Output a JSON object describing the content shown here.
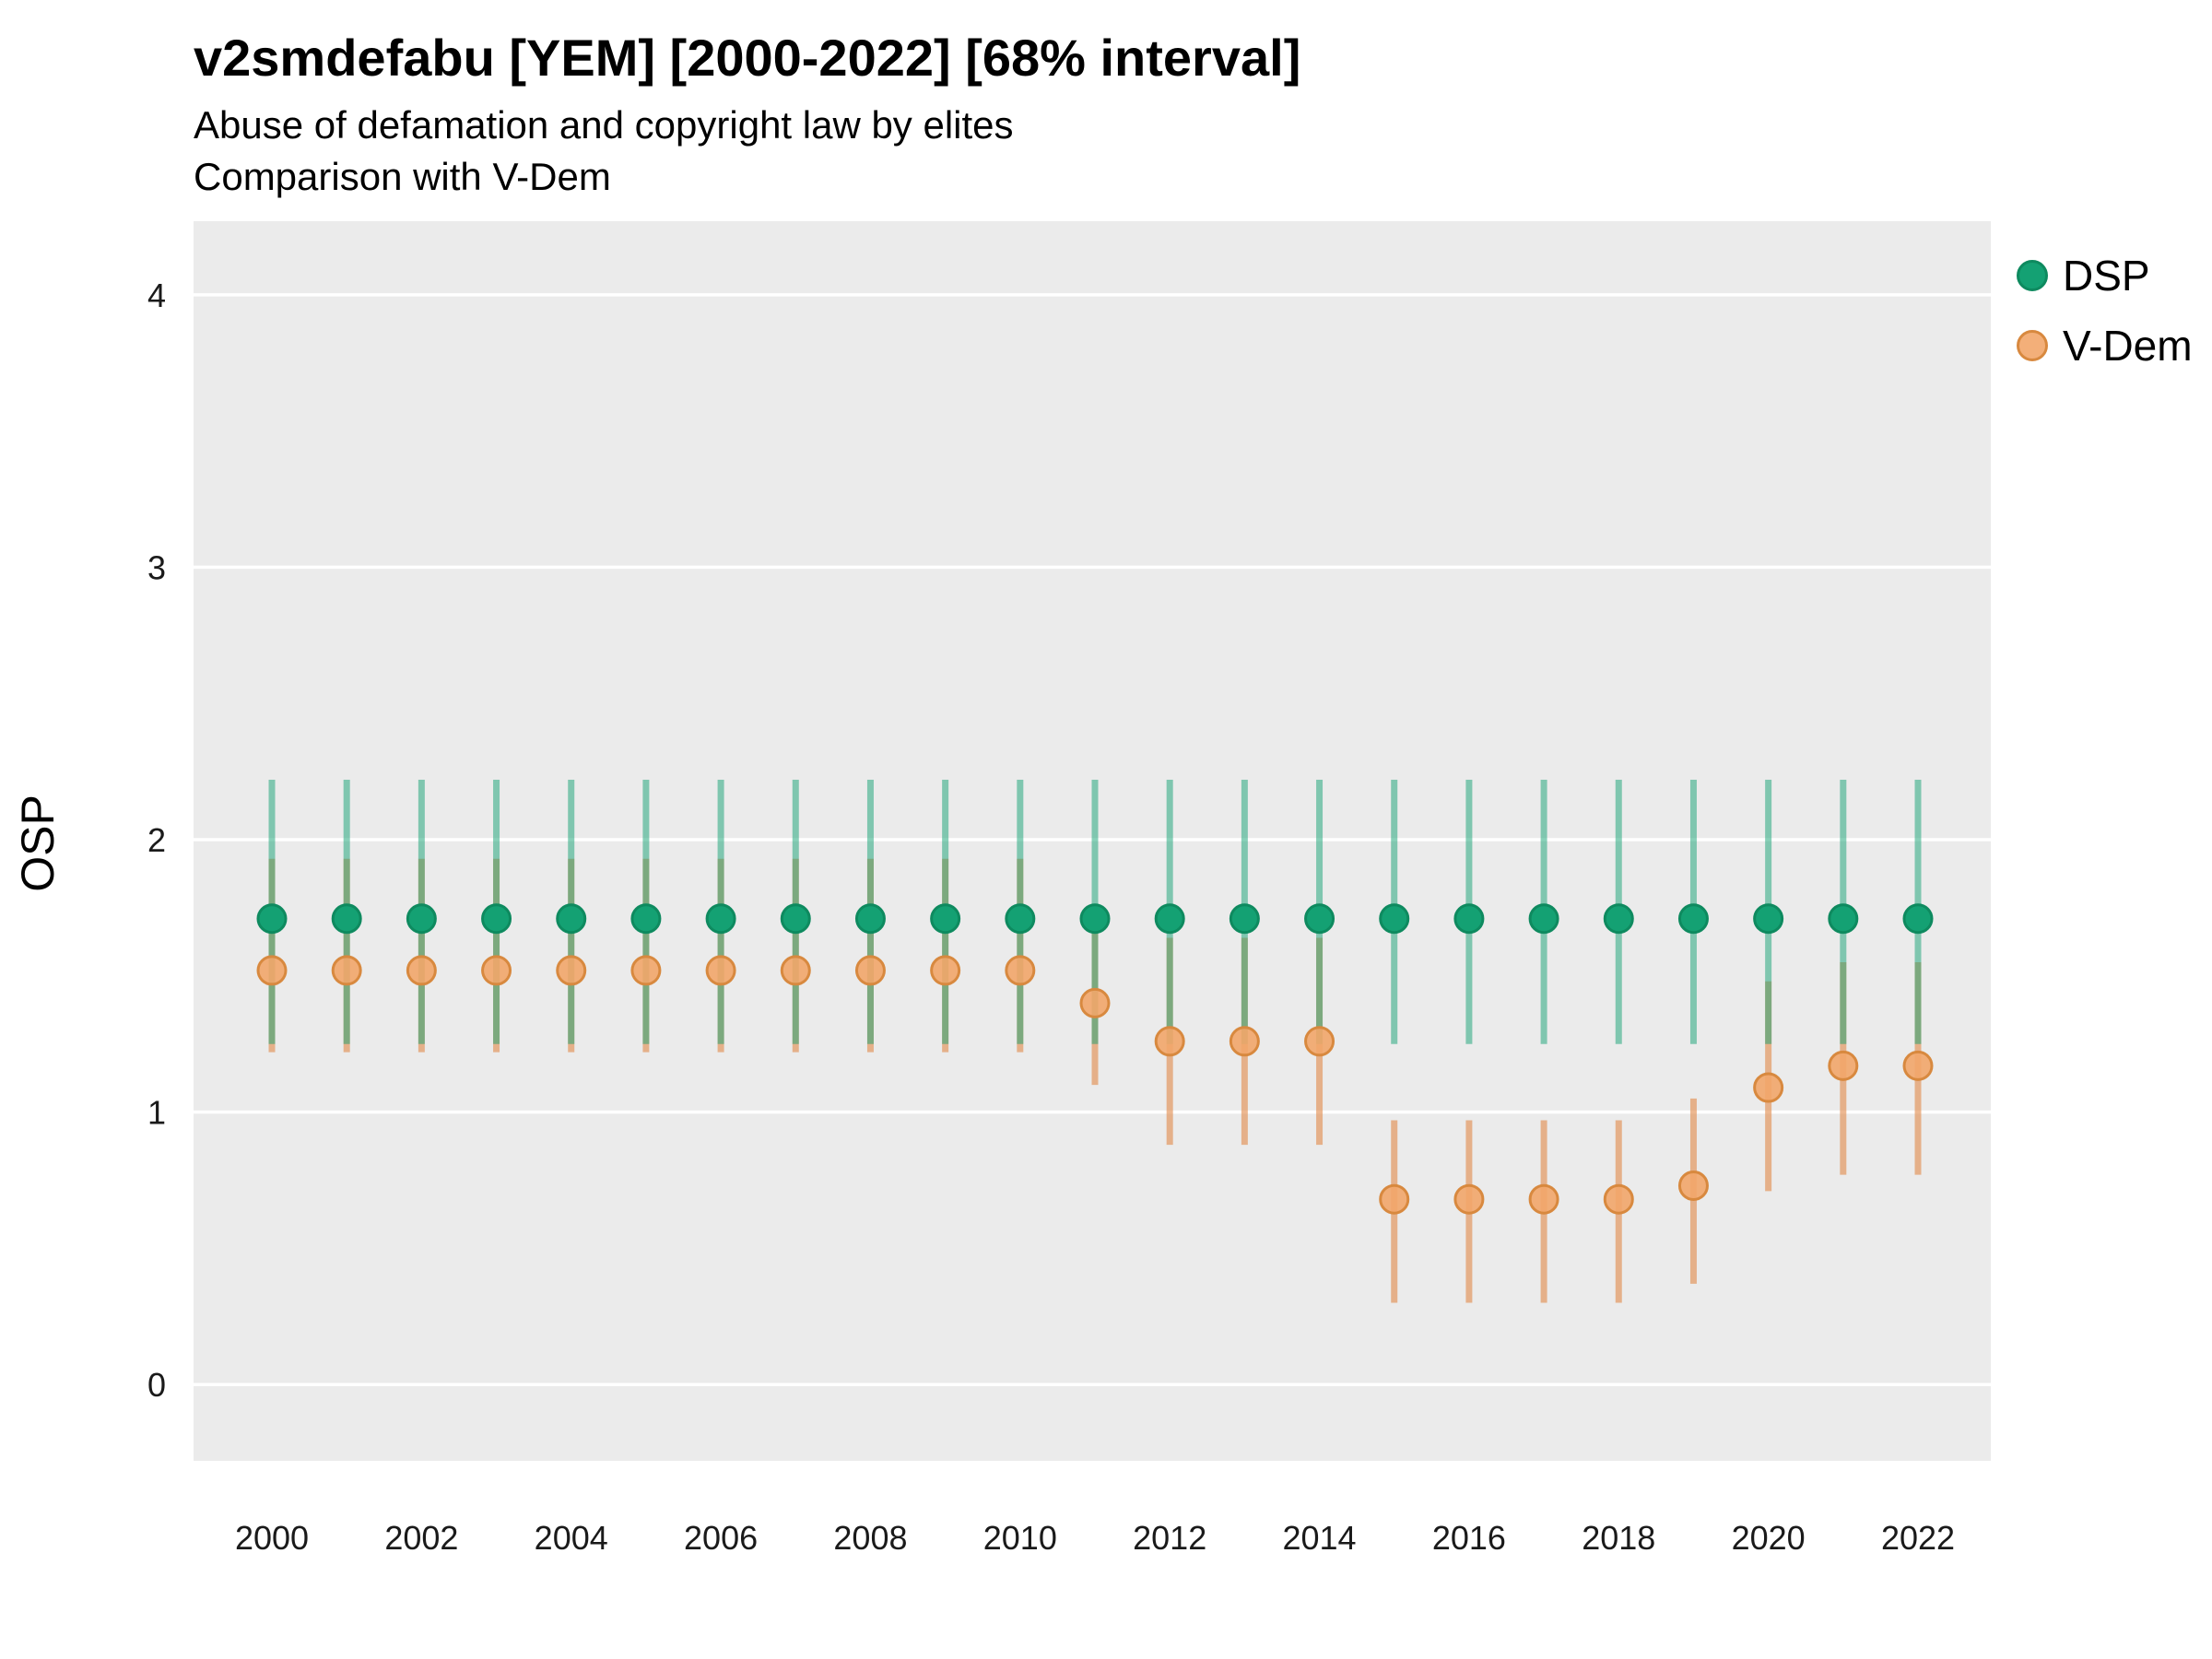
{
  "chart_data": {
    "type": "scatter",
    "title": "v2smdefabu [YEM] [2000-2022] [68% interval]",
    "subtitle": "Abuse of defamation and copyright law by elites",
    "subtitle2": "Comparison with V-Dem",
    "ylabel": "OSP",
    "interval": "68%",
    "panel_background": "#EBEBEB",
    "gridline_color": "#FFFFFF",
    "x": [
      2000,
      2001,
      2002,
      2003,
      2004,
      2005,
      2006,
      2007,
      2008,
      2009,
      2010,
      2011,
      2012,
      2013,
      2014,
      2015,
      2016,
      2017,
      2018,
      2019,
      2020,
      2021,
      2022
    ],
    "xticks": [
      2000,
      2002,
      2004,
      2006,
      2008,
      2010,
      2012,
      2014,
      2016,
      2018,
      2020,
      2022
    ],
    "yticks": [
      0,
      1,
      2,
      3,
      4
    ],
    "ylim": [
      -0.28,
      4.27
    ],
    "legend_position": "right",
    "series": [
      {
        "name": "DSP",
        "point_fill": "#14a173",
        "point_stroke": "#0e8a5f",
        "interval_color": "rgba(20,161,115,0.5)",
        "est": [
          1.71,
          1.71,
          1.71,
          1.71,
          1.71,
          1.71,
          1.71,
          1.71,
          1.71,
          1.71,
          1.71,
          1.71,
          1.71,
          1.71,
          1.71,
          1.71,
          1.71,
          1.71,
          1.71,
          1.71,
          1.71,
          1.71,
          1.71
        ],
        "lo": [
          1.25,
          1.25,
          1.25,
          1.25,
          1.25,
          1.25,
          1.25,
          1.25,
          1.25,
          1.25,
          1.25,
          1.25,
          1.25,
          1.25,
          1.25,
          1.25,
          1.25,
          1.25,
          1.25,
          1.25,
          1.25,
          1.25,
          1.25
        ],
        "hi": [
          2.22,
          2.22,
          2.22,
          2.22,
          2.22,
          2.22,
          2.22,
          2.22,
          2.22,
          2.22,
          2.22,
          2.22,
          2.22,
          2.22,
          2.22,
          2.22,
          2.22,
          2.22,
          2.22,
          2.22,
          2.22,
          2.22,
          2.22
        ]
      },
      {
        "name": "V-Dem",
        "point_fill": "rgba(242,166,106,0.9)",
        "point_stroke": "#d8893f",
        "interval_color": "rgba(226,141,77,0.62)",
        "est": [
          1.52,
          1.52,
          1.52,
          1.52,
          1.52,
          1.52,
          1.52,
          1.52,
          1.52,
          1.52,
          1.52,
          1.4,
          1.26,
          1.26,
          1.26,
          0.68,
          0.68,
          0.68,
          0.68,
          0.73,
          1.09,
          1.17,
          1.17
        ],
        "lo": [
          1.22,
          1.22,
          1.22,
          1.22,
          1.22,
          1.22,
          1.22,
          1.22,
          1.22,
          1.22,
          1.22,
          1.1,
          0.88,
          0.88,
          0.88,
          0.3,
          0.3,
          0.3,
          0.3,
          0.37,
          0.71,
          0.77,
          0.77
        ],
        "hi": [
          1.93,
          1.93,
          1.93,
          1.93,
          1.93,
          1.93,
          1.93,
          1.93,
          1.93,
          1.93,
          1.93,
          1.7,
          1.64,
          1.64,
          1.64,
          0.97,
          0.97,
          0.97,
          0.97,
          1.05,
          1.48,
          1.55,
          1.55
        ]
      }
    ]
  }
}
